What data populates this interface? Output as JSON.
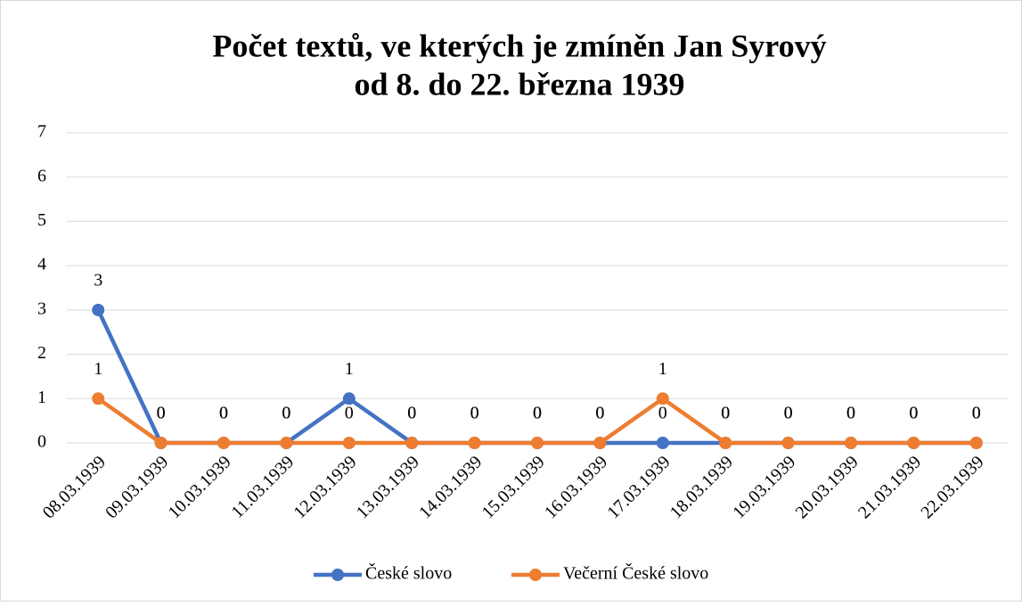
{
  "chart_data": {
    "type": "line",
    "title": [
      "Počet textů, ve kterých je zmíněn Jan Syrový",
      "od 8. do 22. března 1939"
    ],
    "categories": [
      "08.03.1939",
      "09.03.1939",
      "10.03.1939",
      "11.03.1939",
      "12.03.1939",
      "13.03.1939",
      "14.03.1939",
      "15.03.1939",
      "16.03.1939",
      "17.03.1939",
      "18.03.1939",
      "19.03.1939",
      "20.03.1939",
      "21.03.1939",
      "22.03.1939"
    ],
    "series": [
      {
        "name": "České slovo",
        "color": "#4472c4",
        "values": [
          3,
          0,
          0,
          0,
          1,
          0,
          0,
          0,
          0,
          0,
          0,
          0,
          0,
          0,
          0
        ]
      },
      {
        "name": "Večerní České slovo",
        "color": "#ed7d31",
        "values": [
          1,
          0,
          0,
          0,
          0,
          0,
          0,
          0,
          0,
          1,
          0,
          0,
          0,
          0,
          0
        ]
      }
    ],
    "ylim": [
      0,
      7
    ],
    "yticks": [
      0,
      1,
      2,
      3,
      4,
      5,
      6,
      7
    ],
    "grid": true,
    "legend": "bottom"
  }
}
